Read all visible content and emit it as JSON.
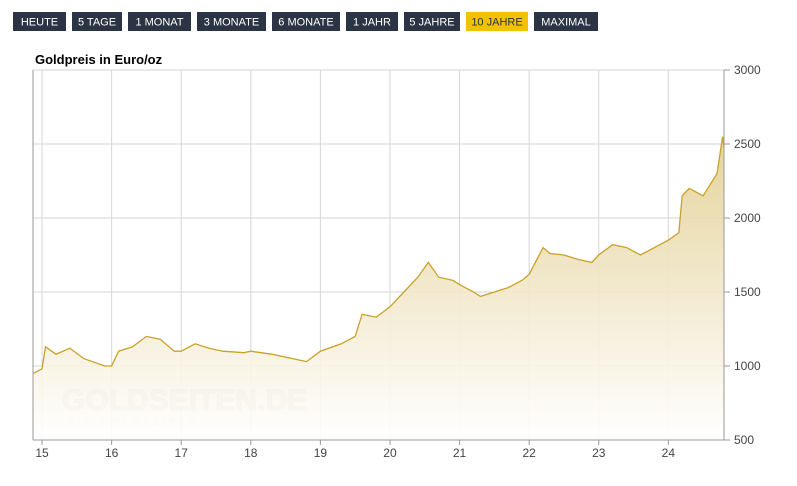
{
  "range_buttons": [
    "HEUTE",
    "5 TAGE",
    "1 MONAT",
    "3 MONATE",
    "6 MONATE",
    "1 JAHR",
    "5 JAHRE",
    "10 JAHRE",
    "MAXIMAL"
  ],
  "chart_data": {
    "type": "area",
    "title": "Goldpreis in Euro/oz",
    "watermark": "GOLDSEITEN.DE",
    "watermark_subtitle": "DIE GOLDSEITEN",
    "color": "#c9a227",
    "grid": true,
    "xlim": [
      14.87,
      24.8
    ],
    "xticks": [
      15,
      16,
      17,
      18,
      19,
      20,
      21,
      22,
      23,
      24
    ],
    "ylim": [
      500,
      3000
    ],
    "yticks": [
      500,
      1000,
      1500,
      2000,
      2500,
      3000
    ],
    "x": [
      14.87,
      15.0,
      15.05,
      15.2,
      15.4,
      15.6,
      15.9,
      16.0,
      16.1,
      16.3,
      16.5,
      16.7,
      16.9,
      17.0,
      17.2,
      17.4,
      17.6,
      17.9,
      18.0,
      18.3,
      18.6,
      18.8,
      19.0,
      19.3,
      19.5,
      19.6,
      19.8,
      20.0,
      20.2,
      20.4,
      20.55,
      20.7,
      20.9,
      21.0,
      21.2,
      21.3,
      21.5,
      21.7,
      21.9,
      22.0,
      22.2,
      22.3,
      22.5,
      22.7,
      22.9,
      23.0,
      23.2,
      23.4,
      23.6,
      23.8,
      24.0,
      24.15,
      24.2,
      24.3,
      24.5,
      24.7,
      24.78,
      24.8
    ],
    "values": [
      950,
      980,
      1130,
      1080,
      1120,
      1050,
      1000,
      1000,
      1100,
      1130,
      1200,
      1180,
      1100,
      1100,
      1150,
      1120,
      1100,
      1090,
      1100,
      1080,
      1050,
      1030,
      1100,
      1150,
      1200,
      1350,
      1330,
      1400,
      1500,
      1600,
      1700,
      1600,
      1580,
      1550,
      1500,
      1470,
      1500,
      1530,
      1580,
      1620,
      1800,
      1760,
      1750,
      1720,
      1700,
      1750,
      1820,
      1800,
      1750,
      1800,
      1850,
      1900,
      2150,
      2200,
      2150,
      2300,
      2550,
      2480
    ]
  }
}
